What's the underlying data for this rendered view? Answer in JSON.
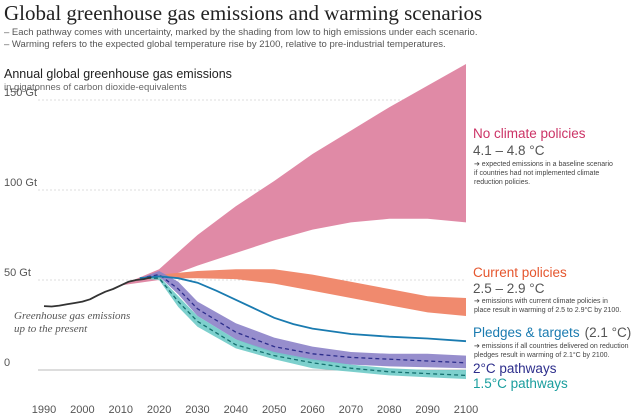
{
  "chart_data": {
    "type": "area",
    "title": "Global greenhouse gas emissions and warming scenarios",
    "subtitle_lines": [
      "– Each pathway comes with uncertainty, marked by the shading from low to high emissions under each scenario.",
      "– Warming refers to the expected global temperature rise by 2100, relative to pre-industrial temperatures."
    ],
    "ylabel": "Annual global greenhouse gas emissions",
    "yunit": "in gigatonnes of carbon dioxide-equivalents",
    "ylim": [
      -8,
      160
    ],
    "xlim": [
      1990,
      2100
    ],
    "y_ticks": [
      {
        "value": 0,
        "label": "0"
      },
      {
        "value": 50,
        "label": "50 Gt"
      },
      {
        "value": 100,
        "label": "100 Gt"
      },
      {
        "value": 150,
        "label": "150 Gt"
      }
    ],
    "x_ticks": [
      1990,
      2000,
      2010,
      2020,
      2030,
      2040,
      2050,
      2060,
      2070,
      2080,
      2090,
      2100
    ],
    "history": {
      "label_lines": [
        "Greenhouse gas emissions",
        "up to the present"
      ],
      "color": "#333333",
      "x": [
        1990,
        1992,
        1994,
        1996,
        1998,
        2000,
        2002,
        2004,
        2006,
        2008,
        2010,
        2012,
        2014,
        2016,
        2018
      ],
      "y": [
        35.5,
        35.3,
        35.8,
        36.5,
        37.2,
        38.0,
        39.3,
        41.5,
        43.5,
        45.0,
        47.0,
        49.0,
        50.0,
        50.5,
        51.5
      ]
    },
    "scenarios": [
      {
        "name": "No climate policies",
        "range": "4.1 – 4.8 °C",
        "color": "#cc3366",
        "fill": "#e08aa6",
        "note_lines": [
          "➔ expected emissions in a baseline scenario",
          "if countries had not implemented climate",
          "reduction policies."
        ],
        "x": [
          2010,
          2020,
          2030,
          2040,
          2050,
          2060,
          2070,
          2080,
          2090,
          2100
        ],
        "low": [
          47,
          50,
          58,
          65,
          72,
          78,
          82,
          84,
          84,
          82
        ],
        "high": [
          47,
          56,
          75,
          91,
          105,
          120,
          133,
          146,
          158,
          170
        ]
      },
      {
        "name": "Current policies",
        "range": "2.5 – 2.9 °C",
        "color": "#e5562e",
        "fill": "#f08a6e",
        "note_lines": [
          "➔ emissions with current climate policies in",
          "place result in warming of 2.5 to 2.9°C by 2100."
        ],
        "x": [
          2015,
          2020,
          2030,
          2040,
          2050,
          2060,
          2070,
          2080,
          2090,
          2100
        ],
        "low": [
          50,
          51,
          51,
          50.5,
          48,
          44,
          40,
          36,
          32,
          30
        ],
        "high": [
          51,
          53,
          55,
          56,
          56,
          53,
          49,
          45,
          41,
          40
        ]
      },
      {
        "name": "Pledges & targets",
        "range": "(2.1 °C)",
        "color": "#1a7bb0",
        "note_lines": [
          "➔ emissions if all countries delivered on reduction",
          "pledges result in warming of 2.1°C by 2100."
        ],
        "x": [
          2015,
          2020,
          2025,
          2030,
          2035,
          2040,
          2045,
          2050,
          2055,
          2060,
          2070,
          2080,
          2090,
          2100
        ],
        "y": [
          51,
          52,
          51,
          48.5,
          44,
          39,
          34,
          29,
          25.5,
          23,
          20,
          18.5,
          17.5,
          16
        ]
      },
      {
        "name": "2°C pathways",
        "color": "#2d2e8c",
        "fill": "#8c82c8",
        "x": [
          2015,
          2020,
          2025,
          2030,
          2040,
          2050,
          2060,
          2070,
          2080,
          2090,
          2100
        ],
        "low": [
          51,
          52,
          42,
          30,
          17,
          9,
          5,
          3,
          2,
          1.5,
          1
        ],
        "high": [
          51,
          55,
          49,
          38,
          26,
          18,
          13,
          10,
          9,
          9,
          8
        ],
        "median": [
          51,
          53,
          45,
          34,
          21,
          13,
          9,
          7,
          6,
          5,
          4
        ]
      },
      {
        "name": "1.5°C pathways",
        "color": "#1a9e9e",
        "fill": "#6fcbc8",
        "x": [
          2015,
          2020,
          2025,
          2030,
          2040,
          2050,
          2060,
          2070,
          2080,
          2090,
          2100
        ],
        "low": [
          51,
          50,
          35,
          24,
          12,
          6,
          1,
          -1,
          -3,
          -4,
          -5
        ],
        "high": [
          51,
          52,
          41,
          30,
          17,
          10,
          6,
          3,
          1,
          0,
          0
        ],
        "median": [
          51,
          51,
          38,
          27,
          14,
          8,
          4,
          1,
          -1,
          -2,
          -3
        ]
      }
    ]
  }
}
